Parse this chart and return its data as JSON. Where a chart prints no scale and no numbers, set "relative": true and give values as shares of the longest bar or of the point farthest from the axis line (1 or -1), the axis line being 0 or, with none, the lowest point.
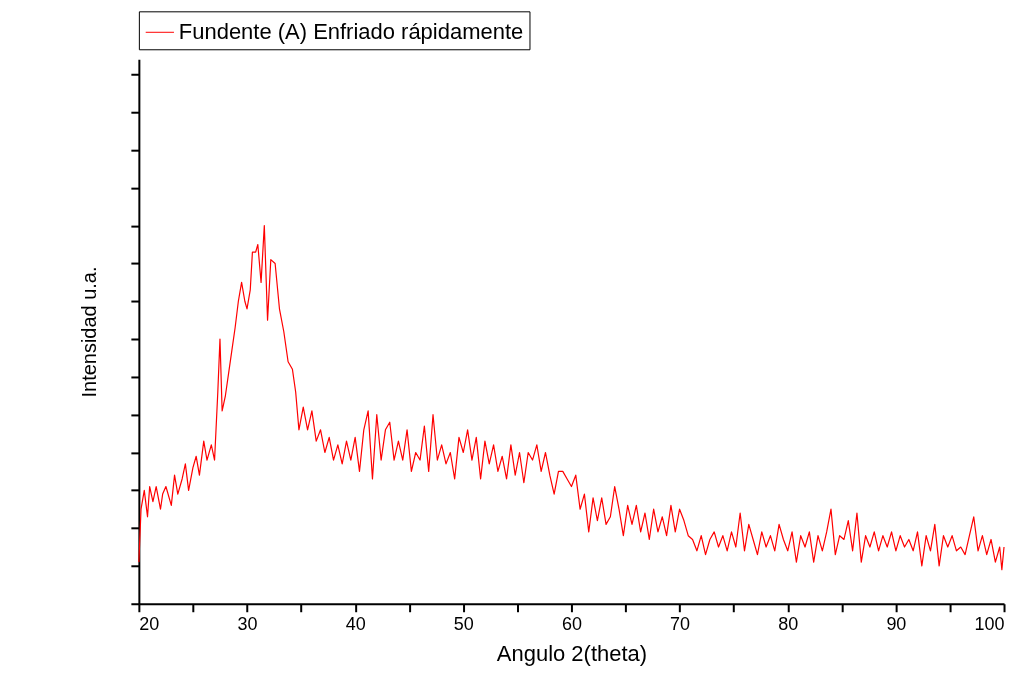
{
  "chart_data": {
    "type": "line",
    "xlabel": "Angulo 2(theta)",
    "ylabel": "Intensidad u.a.",
    "relative": true,
    "legend": "top",
    "grid": false,
    "marker": "none",
    "line_style": "solid",
    "xlim": [
      20,
      100
    ],
    "xticks": [
      20,
      {
        "value": 25,
        "label": null
      },
      30,
      {
        "value": 35,
        "label": null
      },
      40,
      {
        "value": 45,
        "label": null
      },
      50,
      {
        "value": 55,
        "label": null
      },
      60,
      {
        "value": 65,
        "label": null
      },
      70,
      {
        "value": 75,
        "label": null
      },
      80,
      {
        "value": 85,
        "label": null
      },
      90,
      {
        "value": 95,
        "label": null
      },
      100
    ],
    "x": [
      20.0,
      20.2,
      20.5,
      20.8,
      21.0,
      21.3,
      21.6,
      22.0,
      22.2,
      22.5,
      23.0,
      23.3,
      23.6,
      24.0,
      24.3,
      24.6,
      25.0,
      25.3,
      25.6,
      26.0,
      26.3,
      26.7,
      27.0,
      27.3,
      27.5,
      27.7,
      28.0,
      28.3,
      28.6,
      28.9,
      29.2,
      29.5,
      29.8,
      30.0,
      30.3,
      30.5,
      30.8,
      31.0,
      31.3,
      31.6,
      31.9,
      32.2,
      32.6,
      33.0,
      33.4,
      33.8,
      34.2,
      34.5,
      34.8,
      35.2,
      35.6,
      36.0,
      36.4,
      36.8,
      37.2,
      37.6,
      38.0,
      38.4,
      38.8,
      39.2,
      39.6,
      40.0,
      40.4,
      40.8,
      41.2,
      41.6,
      42.0,
      42.4,
      42.8,
      43.2,
      43.6,
      44.0,
      44.4,
      44.8,
      45.2,
      45.6,
      46.0,
      46.4,
      46.8,
      47.2,
      47.6,
      48.0,
      48.4,
      48.8,
      49.2,
      49.6,
      50.0,
      50.4,
      50.8,
      51.2,
      51.6,
      52.0,
      52.4,
      52.8,
      53.2,
      53.6,
      54.0,
      54.4,
      54.8,
      55.2,
      55.6,
      56.0,
      56.4,
      56.8,
      57.2,
      57.6,
      58.0,
      58.4,
      58.8,
      59.2,
      59.6,
      60.0,
      60.4,
      60.8,
      61.2,
      61.6,
      62.0,
      62.4,
      62.8,
      63.2,
      63.6,
      64.0,
      64.4,
      64.8,
      65.2,
      65.6,
      66.0,
      66.4,
      66.8,
      67.2,
      67.6,
      68.0,
      68.4,
      68.8,
      69.2,
      69.6,
      70.0,
      70.4,
      70.8,
      71.2,
      71.6,
      72.0,
      72.4,
      72.8,
      73.2,
      73.6,
      74.0,
      74.4,
      74.8,
      75.2,
      75.6,
      76.0,
      76.4,
      76.8,
      77.2,
      77.6,
      78.0,
      78.4,
      78.8,
      79.2,
      79.6,
      80.0,
      80.4,
      80.8,
      81.2,
      81.6,
      82.0,
      82.4,
      82.8,
      83.2,
      83.6,
      84.0,
      84.4,
      84.8,
      85.2,
      85.6,
      86.0,
      86.4,
      86.8,
      87.2,
      87.6,
      88.0,
      88.4,
      88.8,
      89.2,
      89.6,
      90.0,
      90.4,
      90.8,
      91.2,
      91.6,
      92.0,
      92.4,
      92.8,
      93.2,
      93.6,
      94.0,
      94.4,
      94.8,
      95.2,
      95.6,
      96.0,
      96.4,
      96.8,
      97.2,
      97.6,
      98.0,
      98.4,
      98.8,
      99.2,
      99.6,
      99.8,
      100.0
    ],
    "series": [
      {
        "name": "Fundente (A) Enfriado rápidamente",
        "color": "#ff0000",
        "values": [
          0.11,
          0.25,
          0.3,
          0.23,
          0.31,
          0.27,
          0.31,
          0.25,
          0.29,
          0.31,
          0.26,
          0.34,
          0.29,
          0.33,
          0.37,
          0.3,
          0.36,
          0.39,
          0.34,
          0.43,
          0.38,
          0.42,
          0.38,
          0.56,
          0.7,
          0.51,
          0.55,
          0.61,
          0.67,
          0.73,
          0.8,
          0.85,
          0.8,
          0.78,
          0.83,
          0.93,
          0.93,
          0.95,
          0.85,
          1.0,
          0.75,
          0.91,
          0.9,
          0.78,
          0.72,
          0.64,
          0.62,
          0.56,
          0.46,
          0.52,
          0.46,
          0.51,
          0.43,
          0.46,
          0.4,
          0.44,
          0.38,
          0.42,
          0.37,
          0.43,
          0.38,
          0.44,
          0.35,
          0.46,
          0.51,
          0.33,
          0.5,
          0.38,
          0.46,
          0.48,
          0.38,
          0.43,
          0.38,
          0.46,
          0.35,
          0.4,
          0.38,
          0.47,
          0.35,
          0.5,
          0.38,
          0.42,
          0.37,
          0.4,
          0.33,
          0.44,
          0.4,
          0.46,
          0.38,
          0.44,
          0.33,
          0.43,
          0.37,
          0.42,
          0.35,
          0.39,
          0.33,
          0.42,
          0.34,
          0.4,
          0.32,
          0.4,
          0.38,
          0.42,
          0.35,
          0.4,
          0.34,
          0.29,
          0.35,
          0.35,
          0.33,
          0.31,
          0.34,
          0.25,
          0.29,
          0.19,
          0.28,
          0.22,
          0.28,
          0.21,
          0.23,
          0.31,
          0.25,
          0.18,
          0.26,
          0.21,
          0.26,
          0.19,
          0.24,
          0.17,
          0.25,
          0.19,
          0.23,
          0.18,
          0.26,
          0.19,
          0.25,
          0.22,
          0.18,
          0.17,
          0.14,
          0.18,
          0.13,
          0.17,
          0.19,
          0.15,
          0.18,
          0.14,
          0.19,
          0.15,
          0.24,
          0.14,
          0.21,
          0.17,
          0.13,
          0.19,
          0.15,
          0.18,
          0.14,
          0.21,
          0.17,
          0.14,
          0.19,
          0.11,
          0.18,
          0.15,
          0.19,
          0.11,
          0.18,
          0.14,
          0.19,
          0.25,
          0.13,
          0.18,
          0.17,
          0.22,
          0.14,
          0.24,
          0.11,
          0.18,
          0.15,
          0.19,
          0.14,
          0.18,
          0.15,
          0.19,
          0.14,
          0.18,
          0.15,
          0.17,
          0.14,
          0.19,
          0.1,
          0.18,
          0.14,
          0.21,
          0.1,
          0.18,
          0.15,
          0.18,
          0.14,
          0.15,
          0.13,
          0.18,
          0.23,
          0.14,
          0.18,
          0.13,
          0.17,
          0.11,
          0.15,
          0.09,
          0.15
        ]
      }
    ]
  }
}
